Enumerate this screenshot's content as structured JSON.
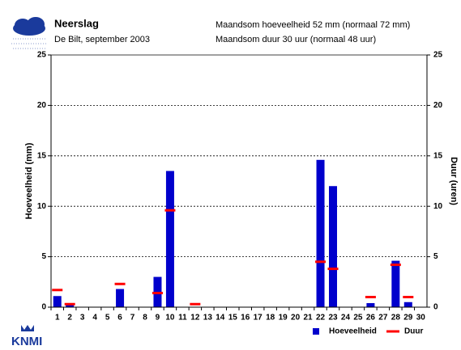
{
  "chart_data": {
    "type": "bar",
    "title": "Neerslag",
    "subtitle": "De Bilt, september 2003",
    "annotations": [
      "Maandsom hoeveelheid  52 mm (normaal 72 mm)",
      "Maandsom duur  30 uur (normaal 48 uur)"
    ],
    "logo": "KNMI",
    "y_label": "Hoeveelheid (mm)",
    "y2_label": "Duur (uren)",
    "categories": [
      "1",
      "2",
      "3",
      "4",
      "5",
      "6",
      "7",
      "8",
      "9",
      "10",
      "11",
      "12",
      "13",
      "14",
      "15",
      "16",
      "17",
      "18",
      "19",
      "20",
      "21",
      "22",
      "23",
      "24",
      "25",
      "26",
      "27",
      "28",
      "29",
      "30"
    ],
    "series": [
      {
        "name": "Hoeveelheid",
        "color": "#0000cc",
        "values": [
          1.1,
          0.3,
          0,
          0,
          0,
          1.8,
          0,
          0,
          3.0,
          13.5,
          0,
          0,
          0,
          0,
          0,
          0,
          0,
          0,
          0,
          0,
          0,
          14.6,
          12.0,
          0,
          0,
          0.4,
          0,
          4.6,
          0.5,
          0
        ]
      },
      {
        "name": "Duur",
        "color": "#ff0000",
        "axis": "y2",
        "values": [
          1.7,
          0.3,
          null,
          null,
          null,
          2.3,
          null,
          null,
          1.4,
          9.6,
          null,
          0.3,
          null,
          null,
          null,
          null,
          null,
          null,
          null,
          null,
          null,
          4.5,
          3.8,
          null,
          null,
          1.0,
          null,
          4.2,
          1.0,
          null
        ]
      }
    ],
    "ylim": [
      0,
      25
    ],
    "yticks": [
      0,
      5,
      10,
      15,
      20,
      25
    ],
    "y2lim": [
      0,
      25
    ],
    "y2ticks": [
      0,
      5,
      10,
      15,
      20,
      25
    ],
    "grid": true
  }
}
